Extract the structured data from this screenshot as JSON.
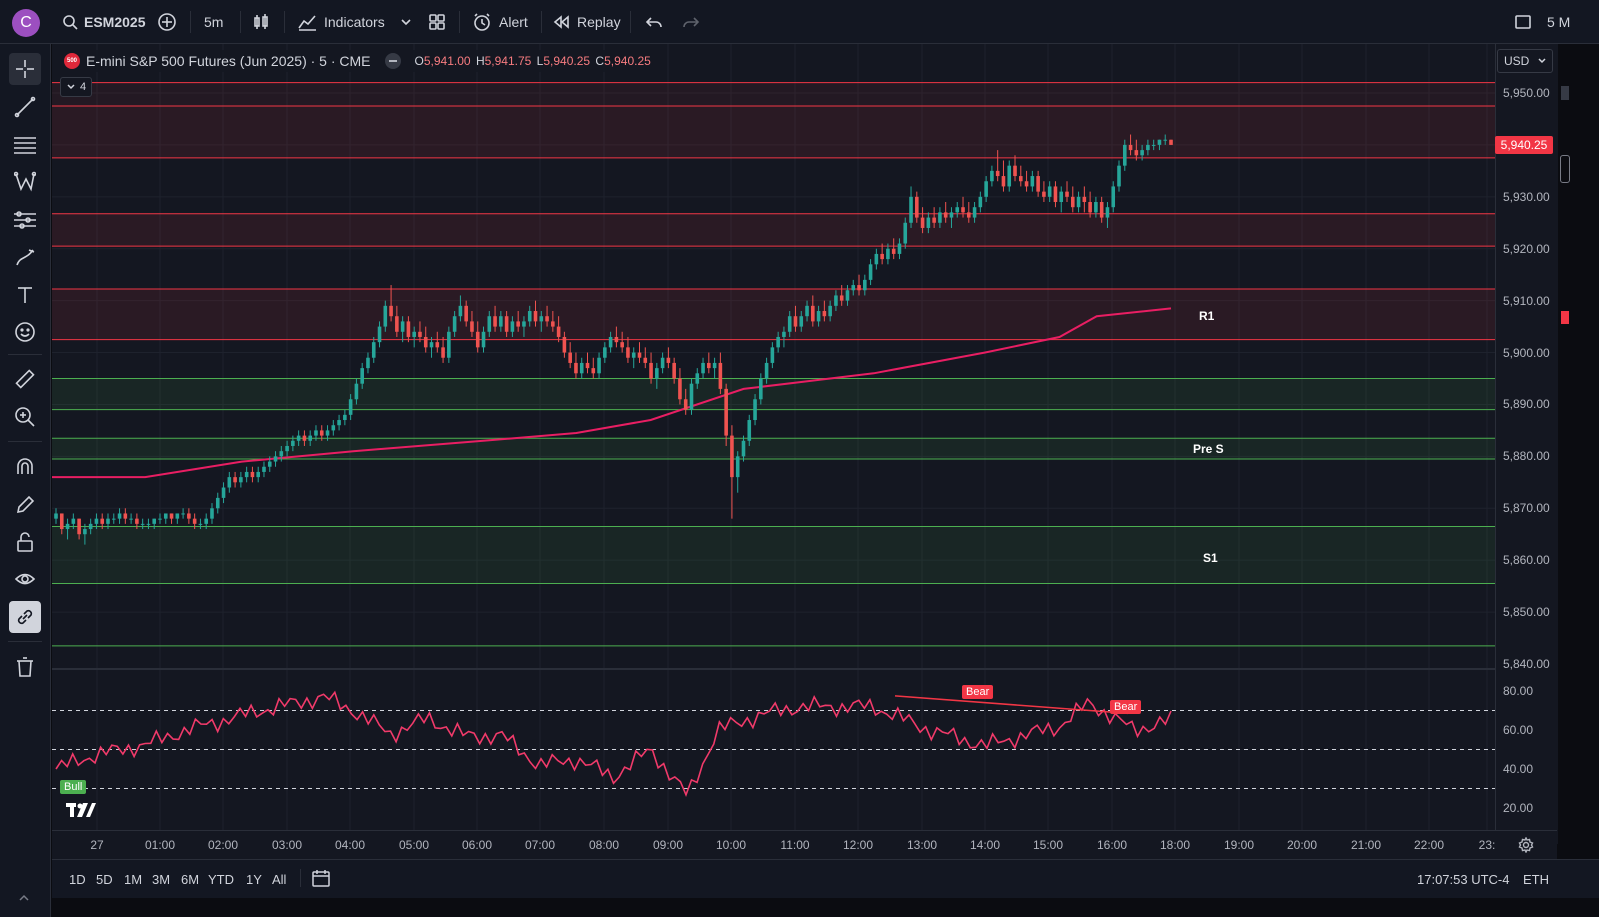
{
  "toolbar": {
    "avatar_letter": "C",
    "symbol": "ESM2025",
    "interval": "5m",
    "indicators": "Indicators",
    "alert": "Alert",
    "replay": "Replay",
    "layout_label": "5 M"
  },
  "legend": {
    "badge": "500",
    "title": "E-mini S&P 500 Futures (Jun 2025) · 5 · CME",
    "o_key": "O",
    "o": "5,941.00",
    "h_key": "H",
    "h": "5,941.75",
    "l_key": "L",
    "l": "5,940.25",
    "c_key": "C",
    "c": "5,940.25",
    "collapsed_count": "4"
  },
  "price_scale": {
    "currency": "USD",
    "last_price": "5,940.25",
    "labels": [
      "5,950.00",
      "5,940.00",
      "5,930.00",
      "5,920.00",
      "5,910.00",
      "5,900.00",
      "5,890.00",
      "5,880.00",
      "5,870.00",
      "5,860.00",
      "5,850.00",
      "5,840.00"
    ],
    "rsi_labels": [
      "80.00",
      "60.00",
      "40.00",
      "20.00"
    ]
  },
  "time_axis": [
    "27",
    "01:00",
    "02:00",
    "03:00",
    "04:00",
    "05:00",
    "06:00",
    "07:00",
    "08:00",
    "09:00",
    "10:00",
    "11:00",
    "12:00",
    "13:00",
    "14:00",
    "15:00",
    "16:00",
    "18:00",
    "19:00",
    "20:00",
    "21:00",
    "22:00",
    "23:"
  ],
  "zones": {
    "r1": "R1",
    "pre_s": "Pre S",
    "s1": "S1"
  },
  "signals": {
    "bull": "Bull",
    "bear1": "Bear",
    "bear2": "Bear"
  },
  "bottom": {
    "ranges": [
      "1D",
      "5D",
      "1M",
      "3M",
      "6M",
      "YTD",
      "1Y",
      "All"
    ],
    "clock": "17:07:53 UTC-4",
    "session": "ETH"
  },
  "colors": {
    "up": "#26a69a",
    "down": "#ef5350",
    "vwap": "#e91e63",
    "resistance_line": "#f23645",
    "support_line": "#4caf50",
    "rsi": "#f03a6a"
  },
  "chart_data": {
    "type": "candlestick",
    "y_range": [
      5840,
      5955
    ],
    "rsi_range": [
      10,
      90
    ],
    "resistance_levels": [
      5952,
      5947.5,
      5937.5,
      5926.75,
      5920.5,
      5912.25,
      5902.5
    ],
    "support_levels": [
      5895,
      5889,
      5883.5,
      5879.5,
      5866.5,
      5855.5,
      5843.5
    ],
    "vwap_anchor_points": [
      [
        0,
        5876
      ],
      [
        24,
        5876
      ],
      [
        50,
        5879
      ],
      [
        80,
        5881
      ],
      [
        115,
        5883
      ],
      [
        140,
        5884.5
      ],
      [
        160,
        5887
      ],
      [
        185,
        5893
      ],
      [
        220,
        5896
      ],
      [
        250,
        5900
      ],
      [
        270,
        5903
      ],
      [
        280,
        5907
      ],
      [
        300,
        5908.5
      ]
    ],
    "rsi_anchor_points": [
      [
        0,
        40
      ],
      [
        10,
        47
      ],
      [
        25,
        53
      ],
      [
        35,
        60
      ],
      [
        45,
        65
      ],
      [
        55,
        70
      ],
      [
        72,
        77
      ],
      [
        80,
        70
      ],
      [
        90,
        58
      ],
      [
        100,
        66
      ],
      [
        110,
        57
      ],
      [
        120,
        57
      ],
      [
        130,
        42
      ],
      [
        140,
        45
      ],
      [
        150,
        36
      ],
      [
        160,
        50
      ],
      [
        170,
        26
      ],
      [
        178,
        60
      ],
      [
        190,
        68
      ],
      [
        200,
        72
      ],
      [
        220,
        72
      ],
      [
        235,
        60
      ],
      [
        250,
        52
      ],
      [
        270,
        62
      ],
      [
        278,
        74
      ],
      [
        290,
        60
      ],
      [
        300,
        65
      ]
    ],
    "candles": [
      [
        5868,
        5870,
        5867,
        5869
      ],
      [
        5869,
        5869,
        5865,
        5866
      ],
      [
        5866,
        5868,
        5864,
        5867
      ],
      [
        5867,
        5869,
        5866,
        5868
      ],
      [
        5868,
        5868,
        5864,
        5865
      ],
      [
        5865,
        5867,
        5863,
        5866
      ],
      [
        5866,
        5868,
        5865,
        5867
      ],
      [
        5867,
        5869,
        5866,
        5868
      ],
      [
        5868,
        5869,
        5866,
        5867
      ],
      [
        5867,
        5869,
        5866,
        5868
      ],
      [
        5868,
        5869,
        5867,
        5868
      ],
      [
        5868,
        5870,
        5867,
        5869
      ],
      [
        5869,
        5870,
        5867,
        5868
      ],
      [
        5868,
        5869,
        5867,
        5868
      ],
      [
        5868,
        5869,
        5866,
        5867
      ],
      [
        5867,
        5868,
        5866,
        5867
      ],
      [
        5867,
        5868,
        5866,
        5867
      ],
      [
        5867,
        5868,
        5866,
        5868
      ],
      [
        5868,
        5869,
        5867,
        5868
      ],
      [
        5868,
        5869,
        5867,
        5869
      ],
      [
        5869,
        5869,
        5867,
        5868
      ],
      [
        5868,
        5869,
        5867,
        5869
      ],
      [
        5869,
        5870,
        5868,
        5869
      ],
      [
        5869,
        5870,
        5867,
        5868
      ],
      [
        5868,
        5869,
        5866,
        5867
      ],
      [
        5867,
        5868,
        5866,
        5867
      ],
      [
        5867,
        5869,
        5866,
        5868
      ],
      [
        5868,
        5871,
        5867,
        5870
      ],
      [
        5870,
        5873,
        5869,
        5872
      ],
      [
        5872,
        5875,
        5871,
        5874
      ],
      [
        5874,
        5877,
        5873,
        5876
      ],
      [
        5876,
        5877,
        5874,
        5875
      ],
      [
        5875,
        5877,
        5874,
        5876
      ],
      [
        5876,
        5878,
        5875,
        5877
      ],
      [
        5877,
        5878,
        5875,
        5876
      ],
      [
        5876,
        5878,
        5875,
        5877
      ],
      [
        5877,
        5879,
        5876,
        5878
      ],
      [
        5878,
        5880,
        5877,
        5879
      ],
      [
        5879,
        5881,
        5878,
        5880
      ],
      [
        5880,
        5882,
        5879,
        5881
      ],
      [
        5881,
        5883,
        5880,
        5882
      ],
      [
        5882,
        5884,
        5881,
        5883
      ],
      [
        5883,
        5885,
        5882,
        5884
      ],
      [
        5884,
        5885,
        5882,
        5883
      ],
      [
        5883,
        5885,
        5882,
        5884
      ],
      [
        5884,
        5886,
        5883,
        5885
      ],
      [
        5885,
        5886,
        5883,
        5884
      ],
      [
        5884,
        5886,
        5883,
        5885
      ],
      [
        5885,
        5887,
        5884,
        5886
      ],
      [
        5886,
        5888,
        5885,
        5887
      ],
      [
        5887,
        5889,
        5886,
        5888
      ],
      [
        5888,
        5892,
        5887,
        5891
      ],
      [
        5891,
        5895,
        5890,
        5894
      ],
      [
        5894,
        5898,
        5893,
        5897
      ],
      [
        5897,
        5900,
        5896,
        5899
      ],
      [
        5899,
        5903,
        5898,
        5902
      ],
      [
        5902,
        5906,
        5901,
        5905
      ],
      [
        5905,
        5910,
        5904,
        5909
      ],
      [
        5909,
        5913,
        5906,
        5907
      ],
      [
        5907,
        5909,
        5903,
        5904
      ],
      [
        5904,
        5907,
        5902,
        5906
      ],
      [
        5906,
        5907,
        5902,
        5903
      ],
      [
        5903,
        5905,
        5901,
        5904
      ],
      [
        5904,
        5906,
        5902,
        5903
      ],
      [
        5903,
        5905,
        5900,
        5901
      ],
      [
        5901,
        5903,
        5899,
        5902
      ],
      [
        5902,
        5904,
        5900,
        5901
      ],
      [
        5901,
        5903,
        5898,
        5899
      ],
      [
        5899,
        5905,
        5898,
        5904
      ],
      [
        5904,
        5908,
        5903,
        5907
      ],
      [
        5907,
        5911,
        5906,
        5909
      ],
      [
        5909,
        5910,
        5905,
        5906
      ],
      [
        5906,
        5908,
        5903,
        5904
      ],
      [
        5904,
        5906,
        5900,
        5901
      ],
      [
        5901,
        5905,
        5900,
        5904
      ],
      [
        5904,
        5908,
        5903,
        5907
      ],
      [
        5907,
        5909,
        5904,
        5905
      ],
      [
        5905,
        5908,
        5904,
        5907
      ],
      [
        5907,
        5908,
        5903,
        5904
      ],
      [
        5904,
        5907,
        5903,
        5906
      ],
      [
        5906,
        5908,
        5904,
        5905
      ],
      [
        5905,
        5907,
        5903,
        5906
      ],
      [
        5906,
        5909,
        5905,
        5908
      ],
      [
        5908,
        5910,
        5905,
        5906
      ],
      [
        5906,
        5908,
        5904,
        5907
      ],
      [
        5907,
        5909,
        5905,
        5906
      ],
      [
        5906,
        5908,
        5904,
        5905
      ],
      [
        5905,
        5907,
        5902,
        5903
      ],
      [
        5903,
        5904,
        5899,
        5900
      ],
      [
        5900,
        5902,
        5897,
        5898
      ],
      [
        5898,
        5900,
        5895,
        5896
      ],
      [
        5896,
        5899,
        5895,
        5898
      ],
      [
        5898,
        5900,
        5896,
        5897
      ],
      [
        5897,
        5899,
        5895,
        5896
      ],
      [
        5896,
        5900,
        5895,
        5899
      ],
      [
        5899,
        5902,
        5898,
        5901
      ],
      [
        5901,
        5904,
        5900,
        5903
      ],
      [
        5903,
        5905,
        5901,
        5902
      ],
      [
        5902,
        5904,
        5900,
        5901
      ],
      [
        5901,
        5903,
        5898,
        5899
      ],
      [
        5899,
        5901,
        5897,
        5900
      ],
      [
        5900,
        5902,
        5898,
        5899
      ],
      [
        5899,
        5901,
        5897,
        5898
      ],
      [
        5898,
        5900,
        5894,
        5895
      ],
      [
        5895,
        5898,
        5893,
        5897
      ],
      [
        5897,
        5900,
        5896,
        5899
      ],
      [
        5899,
        5901,
        5897,
        5898
      ],
      [
        5898,
        5899,
        5894,
        5895
      ],
      [
        5895,
        5897,
        5890,
        5891
      ],
      [
        5891,
        5893,
        5888,
        5889
      ],
      [
        5889,
        5895,
        5888,
        5894
      ],
      [
        5894,
        5897,
        5893,
        5896
      ],
      [
        5896,
        5899,
        5895,
        5898
      ],
      [
        5898,
        5900,
        5896,
        5897
      ],
      [
        5897,
        5899,
        5895,
        5898
      ],
      [
        5898,
        5900,
        5892,
        5893
      ],
      [
        5893,
        5894,
        5882,
        5884
      ],
      [
        5884,
        5886,
        5868,
        5876
      ],
      [
        5876,
        5881,
        5873,
        5880
      ],
      [
        5880,
        5884,
        5879,
        5883
      ],
      [
        5883,
        5888,
        5882,
        5887
      ],
      [
        5887,
        5892,
        5886,
        5891
      ],
      [
        5891,
        5896,
        5890,
        5895
      ],
      [
        5895,
        5899,
        5894,
        5898
      ],
      [
        5898,
        5902,
        5897,
        5901
      ],
      [
        5901,
        5904,
        5900,
        5903
      ],
      [
        5903,
        5905,
        5901,
        5904
      ],
      [
        5904,
        5908,
        5903,
        5907
      ],
      [
        5907,
        5909,
        5904,
        5905
      ],
      [
        5905,
        5908,
        5904,
        5907
      ],
      [
        5907,
        5910,
        5906,
        5909
      ],
      [
        5909,
        5911,
        5905,
        5906
      ],
      [
        5906,
        5909,
        5905,
        5908
      ],
      [
        5908,
        5910,
        5906,
        5907
      ],
      [
        5907,
        5910,
        5906,
        5909
      ],
      [
        5909,
        5912,
        5908,
        5911
      ],
      [
        5911,
        5913,
        5909,
        5910
      ],
      [
        5910,
        5913,
        5909,
        5912
      ],
      [
        5912,
        5914,
        5911,
        5913
      ],
      [
        5913,
        5915,
        5911,
        5912
      ],
      [
        5912,
        5915,
        5911,
        5914
      ],
      [
        5914,
        5918,
        5913,
        5917
      ],
      [
        5917,
        5920,
        5916,
        5919
      ],
      [
        5919,
        5921,
        5917,
        5918
      ],
      [
        5918,
        5921,
        5917,
        5920
      ],
      [
        5920,
        5922,
        5918,
        5919
      ],
      [
        5919,
        5922,
        5918,
        5921
      ],
      [
        5921,
        5926,
        5920,
        5925
      ],
      [
        5925,
        5932,
        5924,
        5930
      ],
      [
        5930,
        5931,
        5925,
        5926
      ],
      [
        5926,
        5928,
        5923,
        5924
      ],
      [
        5924,
        5927,
        5923,
        5926
      ],
      [
        5926,
        5928,
        5924,
        5925
      ],
      [
        5925,
        5928,
        5924,
        5927
      ],
      [
        5927,
        5929,
        5925,
        5926
      ],
      [
        5926,
        5928,
        5924,
        5927
      ],
      [
        5927,
        5929,
        5926,
        5928
      ],
      [
        5928,
        5930,
        5926,
        5927
      ],
      [
        5927,
        5929,
        5925,
        5926
      ],
      [
        5926,
        5929,
        5925,
        5928
      ],
      [
        5928,
        5931,
        5927,
        5930
      ],
      [
        5930,
        5934,
        5929,
        5933
      ],
      [
        5933,
        5936,
        5932,
        5935
      ],
      [
        5935,
        5939,
        5933,
        5934
      ],
      [
        5934,
        5937,
        5931,
        5932
      ],
      [
        5932,
        5937,
        5931,
        5936
      ],
      [
        5936,
        5938,
        5933,
        5934
      ],
      [
        5934,
        5936,
        5932,
        5933
      ],
      [
        5933,
        5935,
        5931,
        5932
      ],
      [
        5932,
        5935,
        5931,
        5934
      ],
      [
        5934,
        5935,
        5930,
        5931
      ],
      [
        5931,
        5933,
        5929,
        5930
      ],
      [
        5930,
        5933,
        5929,
        5932
      ],
      [
        5932,
        5933,
        5928,
        5929
      ],
      [
        5929,
        5932,
        5927,
        5931
      ],
      [
        5931,
        5933,
        5929,
        5930
      ],
      [
        5930,
        5932,
        5927,
        5928
      ],
      [
        5928,
        5931,
        5927,
        5930
      ],
      [
        5930,
        5932,
        5927,
        5929
      ],
      [
        5929,
        5931,
        5926,
        5927
      ],
      [
        5927,
        5930,
        5926,
        5929
      ],
      [
        5929,
        5930,
        5925,
        5926
      ],
      [
        5926,
        5929,
        5924,
        5928
      ],
      [
        5928,
        5933,
        5927,
        5932
      ],
      [
        5932,
        5937,
        5931,
        5936
      ],
      [
        5936,
        5941,
        5935,
        5940
      ],
      [
        5940,
        5942,
        5938,
        5939
      ],
      [
        5939,
        5941,
        5937,
        5938
      ],
      [
        5938,
        5940,
        5937,
        5939
      ],
      [
        5939,
        5941,
        5938,
        5940
      ],
      [
        5940,
        5941,
        5939,
        5940
      ],
      [
        5940,
        5941,
        5939,
        5941
      ],
      [
        5941,
        5942,
        5940,
        5941
      ],
      [
        5941,
        5941,
        5940,
        5940
      ]
    ]
  }
}
